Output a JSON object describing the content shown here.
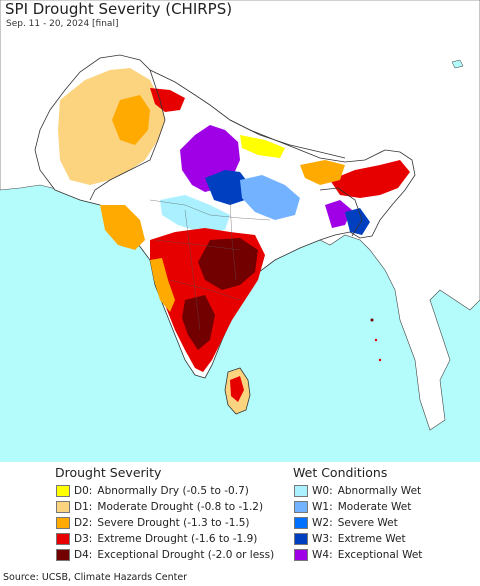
{
  "title": "SPI Drought Severity (CHIRPS)",
  "subtitle": "Sep. 11 - 20, 2024 [final]",
  "legend": {
    "drought_heading": "Drought Severity",
    "wet_heading": "Wet Conditions",
    "drought": [
      {
        "code": "D0:",
        "label": "Abnormally Dry (-0.5 to -0.7)",
        "color": "#ffff00"
      },
      {
        "code": "D1:",
        "label": "Moderate Drought (-0.8 to -1.2)",
        "color": "#fcd37f"
      },
      {
        "code": "D2:",
        "label": "Severe Drought (-1.3 to -1.5)",
        "color": "#ffaa00"
      },
      {
        "code": "D3:",
        "label": "Extreme Drought (-1.6 to -1.9)",
        "color": "#e60000"
      },
      {
        "code": "D4:",
        "label": "Exceptional Drought (-2.0 or less)",
        "color": "#730000"
      }
    ],
    "wet": [
      {
        "code": "W0:",
        "label": "Abnormally Wet",
        "color": "#aaf0ff"
      },
      {
        "code": "W1:",
        "label": "Moderate Wet",
        "color": "#73b2ff"
      },
      {
        "code": "W2:",
        "label": "Severe Wet",
        "color": "#0070ff"
      },
      {
        "code": "W3:",
        "label": "Extreme Wet",
        "color": "#0040c0"
      },
      {
        "code": "W4:",
        "label": "Exceptional Wet",
        "color": "#a000e6"
      }
    ]
  },
  "source": "Source: UCSB, Climate Hazards Center",
  "colors": {
    "ocean": "#b4fcfc",
    "land_outside": "#ffffff",
    "no_data": "#ffffff",
    "border": "#333333"
  }
}
